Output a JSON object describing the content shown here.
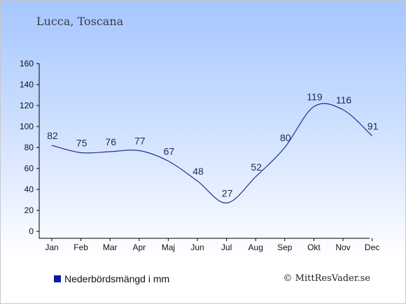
{
  "location_title": "Lucca, Toscana",
  "legend_label": "Nederbördsmängd i mm",
  "copyright": "© MittResVader.se",
  "colors": {
    "line": "#1f2f99",
    "legend_swatch": "#0a1aa8",
    "axis": "#000000"
  },
  "chart_data": {
    "type": "line",
    "categories": [
      "Jan",
      "Feb",
      "Mar",
      "Apr",
      "Maj",
      "Jun",
      "Jul",
      "Aug",
      "Sep",
      "Okt",
      "Nov",
      "Dec"
    ],
    "series": [
      {
        "name": "Nederbördsmängd i mm",
        "values": [
          82,
          75,
          76,
          77,
          67,
          48,
          27,
          52,
          80,
          119,
          116,
          91
        ]
      }
    ],
    "ylim": [
      0,
      160
    ],
    "yticks": [
      0,
      20,
      40,
      60,
      80,
      100,
      120,
      140,
      160
    ],
    "grid": false,
    "legend": "bottom-left"
  }
}
